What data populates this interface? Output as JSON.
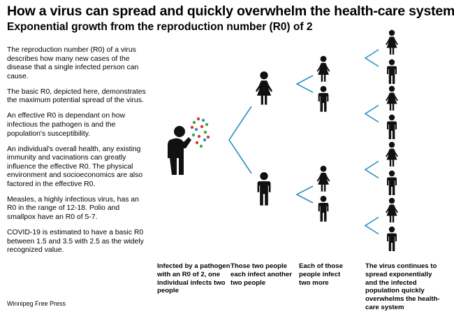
{
  "title": "How a virus can spread and quickly overwhelm the health-care system",
  "subtitle": "Exponential growth from the reproduction number (R0) of 2",
  "paragraphs": [
    "The reproduction number (R0) of a virus describes how many new cases of the disease that a single infected person can cause.",
    "The basic R0, depicted here, demonstrates the maximum potential spread of the virus.",
    "An effective R0 is dependant on how infectious the pathogen is and the population's susceptibility.",
    "An individual's overall health, any existing immunity and vacinations can greatly influence the effective R0. The physical environment and socioeconomics are also factored in the effective R0.",
    "Measles, a highly infectious virus, has an R0 in the range of 12-18. Polio and smallpox have an R0 of 5-7.",
    "COVID-19 is estimated to have a basic R0 between 1.5 and 3.5 with 2.5 as the widely recognized value."
  ],
  "captions": [
    "Infected by a pathogen with an R0 of 2, one individual infects two people",
    "Those two people each infect another two people",
    "Each of those people infect two more",
    "The virus continues to spread exponentially and the infected population quickly overwhelms the health-care system"
  ],
  "source": "Winnipeg Free Press",
  "colors": {
    "figure": "#111111",
    "bracket": "#2e8fc2",
    "germ_red": "#d9382e",
    "germ_green": "#3aa84a",
    "germ_blue": "#2e8fc2"
  },
  "icons": {
    "patient_zero": "coughing-person-icon",
    "woman": "woman-icon",
    "man": "man-icon"
  },
  "diagram": {
    "generations": [
      {
        "count": 1,
        "figures": [
          "coughing"
        ]
      },
      {
        "count": 2,
        "figures": [
          "woman",
          "man"
        ]
      },
      {
        "count": 4,
        "figures": [
          "woman",
          "man",
          "woman",
          "man"
        ]
      },
      {
        "count": 8,
        "figures": [
          "woman",
          "man",
          "woman",
          "man",
          "woman",
          "man",
          "woman",
          "man"
        ]
      }
    ]
  }
}
